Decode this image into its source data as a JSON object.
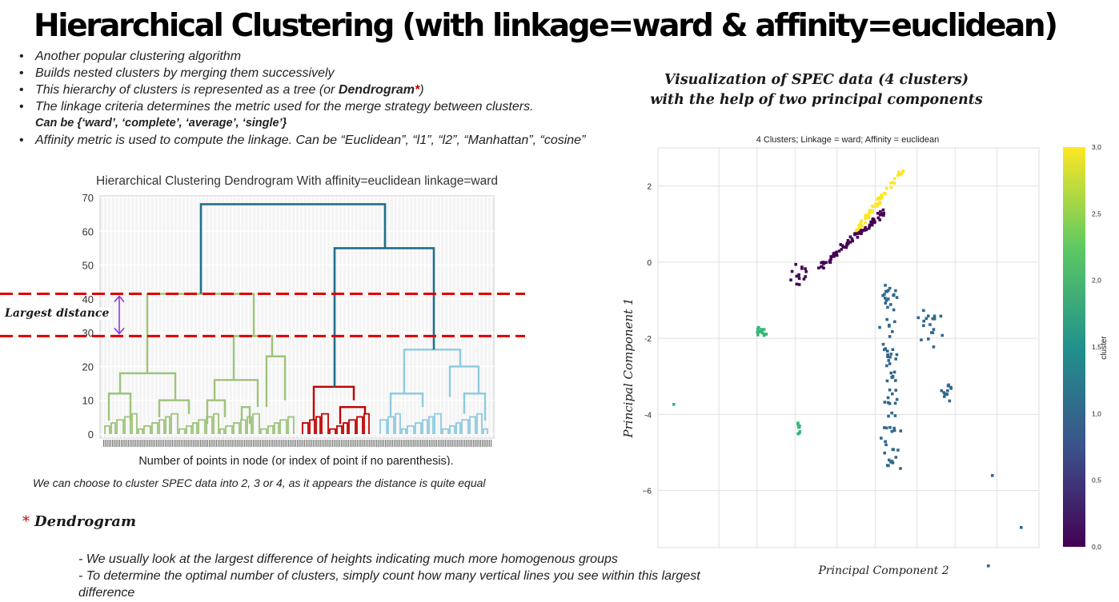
{
  "title": "Hierarchical Clustering (with linkage=ward & affinity=euclidean)",
  "bullets": {
    "b1": "Another popular clustering algorithm",
    "b2": "Builds nested clusters by merging them successively",
    "b3_pre": "This hierarchy of clusters is represented as a tree (or ",
    "b3_bold": "Dendrogram",
    "b3_star": "*",
    "b3_post": ")",
    "b4": "The linkage criteria determines the metric used for the merge strategy between clusters.",
    "b4_sub": "Can be {‘ward’, ‘complete’, ‘average’, ‘single’}",
    "b5": "Affinity metric is used to compute the linkage. Can be “Euclidean”, “l1”, “l2”, “Manhattan”, “cosine”"
  },
  "side_label": "Largest distance",
  "caption": "We can choose to cluster SPEC data into 2, 3 or 4, as it appears the distance is quite equal",
  "dendrogram_note": {
    "asterisk": "*",
    "heading": "Dendrogram",
    "line1": "- We usually look at the largest difference of heights indicating much more homogenous groups",
    "line2": "- To determine the optimal number of clusters, simply count how many vertical lines you see within this largest difference"
  },
  "viz_title": {
    "line1": "Visualization of SPEC data (4 clusters)",
    "line2": "with the help of two principal components"
  },
  "colors": {
    "green": "#9dc37a",
    "red": "#c00000",
    "lightblue": "#8ecae0",
    "darkblue": "#1f6f8b",
    "dashed": "#e00000",
    "arrow": "#8a2be2"
  },
  "chart_data": [
    {
      "type": "dendrogram",
      "title": "Hierarchical Clustering Dendrogram With affinity=euclidean linkage=ward",
      "xlabel": "Number of points in node (or index of point if no parenthesis).",
      "ylabel": "",
      "ylim": [
        0,
        70
      ],
      "yticks": [
        0,
        10,
        20,
        30,
        40,
        50,
        60,
        70
      ],
      "annotations": {
        "cut_lines": [
          41.5,
          29
        ]
      },
      "merges": [
        {
          "name": "green",
          "height": 41.5
        },
        {
          "name": "red",
          "height": 14
        },
        {
          "name": "lightblue",
          "height": 25
        },
        {
          "name": "red+lightblue",
          "height": 55
        },
        {
          "name": "root",
          "height": 68
        }
      ]
    },
    {
      "type": "scatter",
      "title": "4 Clusters; Linkage = ward; Affinity = euclidean",
      "xlabel": "Principal Component 2",
      "ylabel": "Principal Component 1",
      "yticks": [
        "2",
        "0",
        "-2",
        "-4",
        "−6"
      ],
      "ylim": [
        -7.5,
        3
      ],
      "colorbar": {
        "label": "cluster",
        "ticks": [
          "0,0",
          "0,5",
          "1,0",
          "1,5",
          "2,0",
          "2,5",
          "3,0"
        ]
      },
      "series": [
        {
          "cluster": 0,
          "color": "#440154",
          "count": 120
        },
        {
          "cluster": 1,
          "color": "#31688e",
          "count": 110
        },
        {
          "cluster": 2,
          "color": "#35b779",
          "count": 22
        },
        {
          "cluster": 3,
          "color": "#fde725",
          "count": 60
        }
      ]
    }
  ]
}
